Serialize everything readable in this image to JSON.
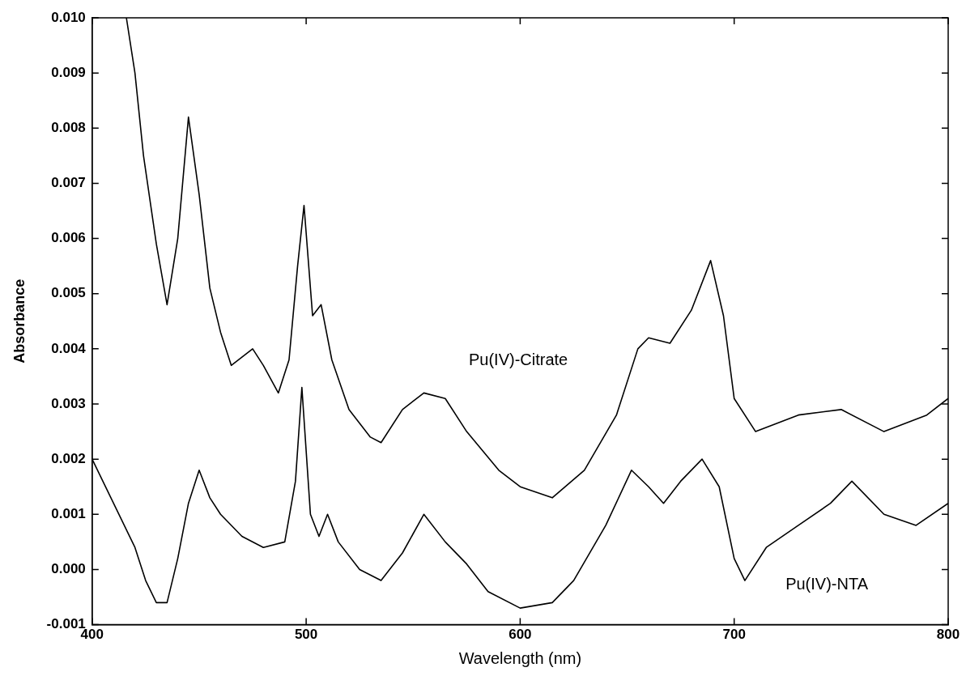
{
  "chart_data": {
    "type": "line",
    "xlabel": "Wavelength (nm)",
    "ylabel": "Absorbance",
    "xlim": [
      400,
      800
    ],
    "xticks": [
      400,
      500,
      600,
      700,
      800
    ],
    "ylim": [
      -0.001,
      0.01
    ],
    "yticks": [
      {
        "value": -0.001,
        "label": "-0.001"
      },
      {
        "value": 0,
        "label": "0.000"
      },
      {
        "value": 0.001,
        "label": "0.001"
      },
      {
        "value": 0.002,
        "label": "0.002"
      },
      {
        "value": 0.003,
        "label": "0.003"
      },
      {
        "value": 0.004,
        "label": "0.004"
      },
      {
        "value": 0.005,
        "label": "0.005"
      },
      {
        "value": 0.006,
        "label": "0.006"
      },
      {
        "value": 0.007,
        "label": "0.007"
      },
      {
        "value": 0.008,
        "label": "0.008"
      },
      {
        "value": 0.009,
        "label": "0.009"
      },
      {
        "value": 0.01,
        "label": "0.010"
      }
    ],
    "grid": false,
    "legend": false,
    "marker": "none",
    "line_style": "solid",
    "series": [
      {
        "color": "#000000",
        "x": [
          416,
          420,
          424,
          430,
          435,
          440,
          445,
          450,
          455,
          460,
          465,
          475,
          480,
          487,
          492,
          496,
          499,
          503,
          507,
          512,
          520,
          530,
          535,
          545,
          555,
          565,
          575,
          590,
          600,
          615,
          630,
          645,
          655,
          660,
          670,
          680,
          689,
          695,
          700,
          710,
          730,
          750,
          770,
          790,
          800
        ],
        "values": [
          0.01,
          0.009,
          0.0075,
          0.0059,
          0.0048,
          0.006,
          0.0082,
          0.0068,
          0.0051,
          0.0043,
          0.0037,
          0.004,
          0.0037,
          0.0032,
          0.0038,
          0.0055,
          0.0066,
          0.0046,
          0.0048,
          0.0038,
          0.0029,
          0.0024,
          0.0023,
          0.0029,
          0.0032,
          0.0031,
          0.0025,
          0.0018,
          0.0015,
          0.0013,
          0.0018,
          0.0028,
          0.004,
          0.0042,
          0.0041,
          0.0047,
          0.0056,
          0.0046,
          0.0031,
          0.0025,
          0.0028,
          0.0029,
          0.0025,
          0.0028,
          0.0031
        ]
      },
      {
        "color": "#000000",
        "x": [
          400,
          410,
          420,
          425,
          430,
          435,
          440,
          445,
          450,
          455,
          460,
          470,
          480,
          490,
          495,
          498,
          502,
          506,
          510,
          515,
          525,
          535,
          545,
          555,
          565,
          575,
          585,
          600,
          615,
          625,
          640,
          652,
          660,
          667,
          675,
          685,
          693,
          700,
          705,
          715,
          730,
          745,
          755,
          770,
          785,
          800
        ],
        "values": [
          0.002,
          0.0012,
          0.0004,
          -0.0002,
          -0.0006,
          -0.0006,
          0.0002,
          0.0012,
          0.0018,
          0.0013,
          0.001,
          0.0006,
          0.0004,
          0.0005,
          0.0016,
          0.0033,
          0.001,
          0.0006,
          0.001,
          0.0005,
          0.0,
          -0.0002,
          0.0003,
          0.001,
          0.0005,
          0.0001,
          -0.0004,
          -0.0007,
          -0.0006,
          -0.0002,
          0.0008,
          0.0018,
          0.0015,
          0.0012,
          0.0016,
          0.002,
          0.0015,
          0.0002,
          -0.0002,
          0.0004,
          0.0008,
          0.0012,
          0.0016,
          0.001,
          0.0008,
          0.0012
        ]
      }
    ],
    "annotations": [
      "Pu(IV)-Citrate",
      "Pu(IV)-NTA"
    ]
  }
}
